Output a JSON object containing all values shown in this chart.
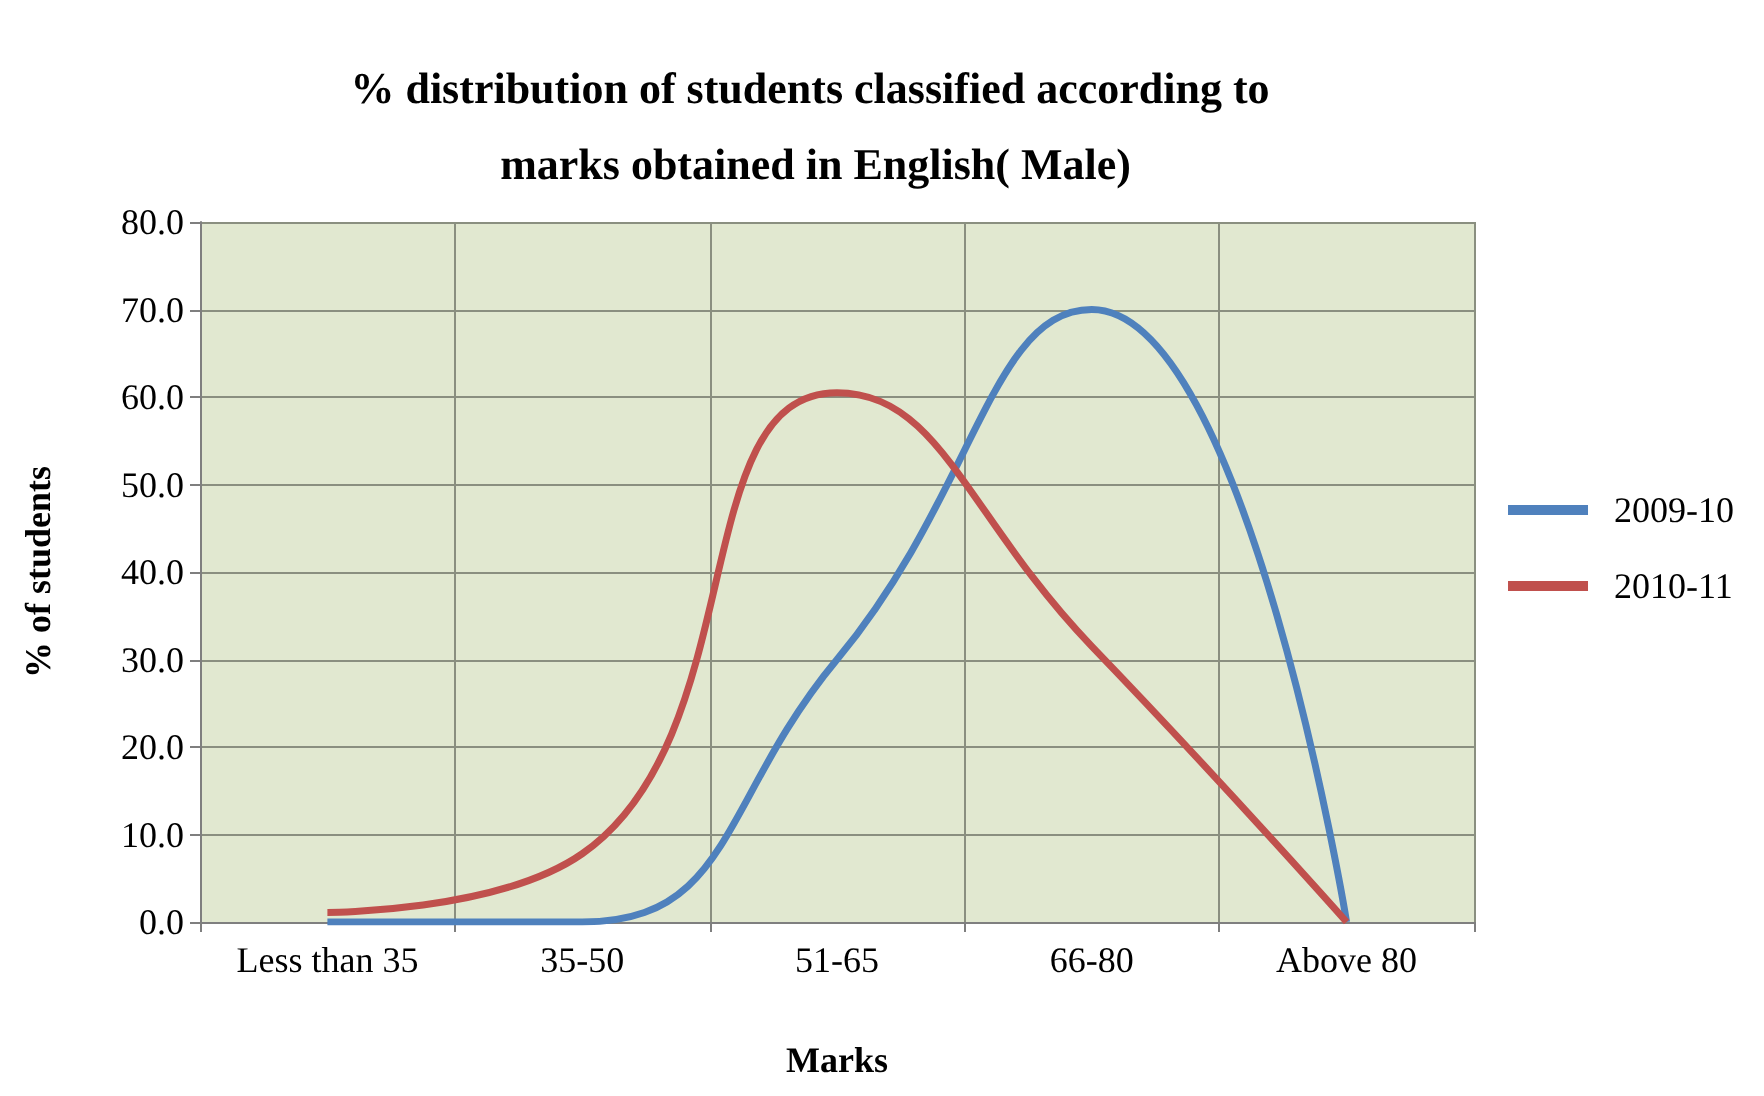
{
  "chart_data": {
    "type": "line",
    "title": "% distribution of students classified according to marks obtained in English( Male)",
    "xlabel": "Marks",
    "ylabel": "% of students",
    "categories": [
      "Less than 35",
      "35-50",
      "51-65",
      "66-80",
      "Above 80"
    ],
    "series": [
      {
        "name": "2009-10",
        "color": "#4f81bd",
        "values": [
          0,
          0,
          30,
          70,
          0
        ]
      },
      {
        "name": "2010-11",
        "color": "#c0504d",
        "values": [
          1.1,
          7.8,
          60.5,
          31.5,
          0
        ]
      }
    ],
    "ylim": [
      0,
      80
    ],
    "yticks": [
      {
        "value": 0,
        "label": "0.0"
      },
      {
        "value": 10,
        "label": "10.0"
      },
      {
        "value": 20,
        "label": "20.0"
      },
      {
        "value": 30,
        "label": "30.0"
      },
      {
        "value": 40,
        "label": "40.0"
      },
      {
        "value": 50,
        "label": "50.0"
      },
      {
        "value": 60,
        "label": "60.0"
      },
      {
        "value": 70,
        "label": "70.0"
      },
      {
        "value": 80,
        "label": "80.0"
      }
    ],
    "grid": true,
    "legend": "right",
    "marker": "none",
    "line_style": "solid"
  }
}
